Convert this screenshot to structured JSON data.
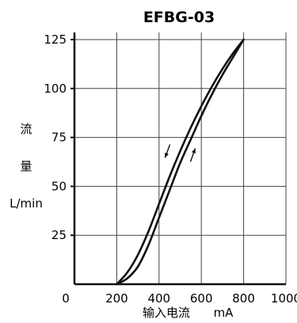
{
  "chart_data": {
    "type": "line",
    "title": "EFBG-03",
    "ylabel_lines": [
      "流",
      "量",
      "L/min"
    ],
    "xlabel": "输入电流",
    "xunit": "mA",
    "x_ticks": [
      "0",
      "200",
      "400",
      "600",
      "800",
      "1000"
    ],
    "y_ticks": [
      "25",
      "50",
      "75",
      "100",
      "125"
    ],
    "xlim": [
      0,
      1000
    ],
    "ylim": [
      0,
      125
    ],
    "grid": true,
    "series": [
      {
        "direction": "increasing",
        "color": "#111111",
        "x": [
          200,
          250,
          300,
          350,
          400,
          450,
          500,
          550,
          600,
          650,
          700,
          750,
          800
        ],
        "y": [
          0,
          3,
          9,
          20,
          34,
          48,
          62,
          74,
          86,
          97,
          107,
          116,
          125
        ]
      },
      {
        "direction": "decreasing",
        "color": "#111111",
        "x": [
          800,
          750,
          700,
          650,
          600,
          550,
          500,
          450,
          400,
          350,
          300,
          250,
          200
        ],
        "y": [
          125,
          118,
          110,
          101,
          91,
          80,
          68,
          55,
          41,
          27,
          15,
          6,
          0
        ]
      }
    ],
    "arrows": [
      {
        "direction": "down",
        "x": 440,
        "y": 68
      },
      {
        "direction": "up",
        "x": 560,
        "y": 66
      }
    ]
  }
}
